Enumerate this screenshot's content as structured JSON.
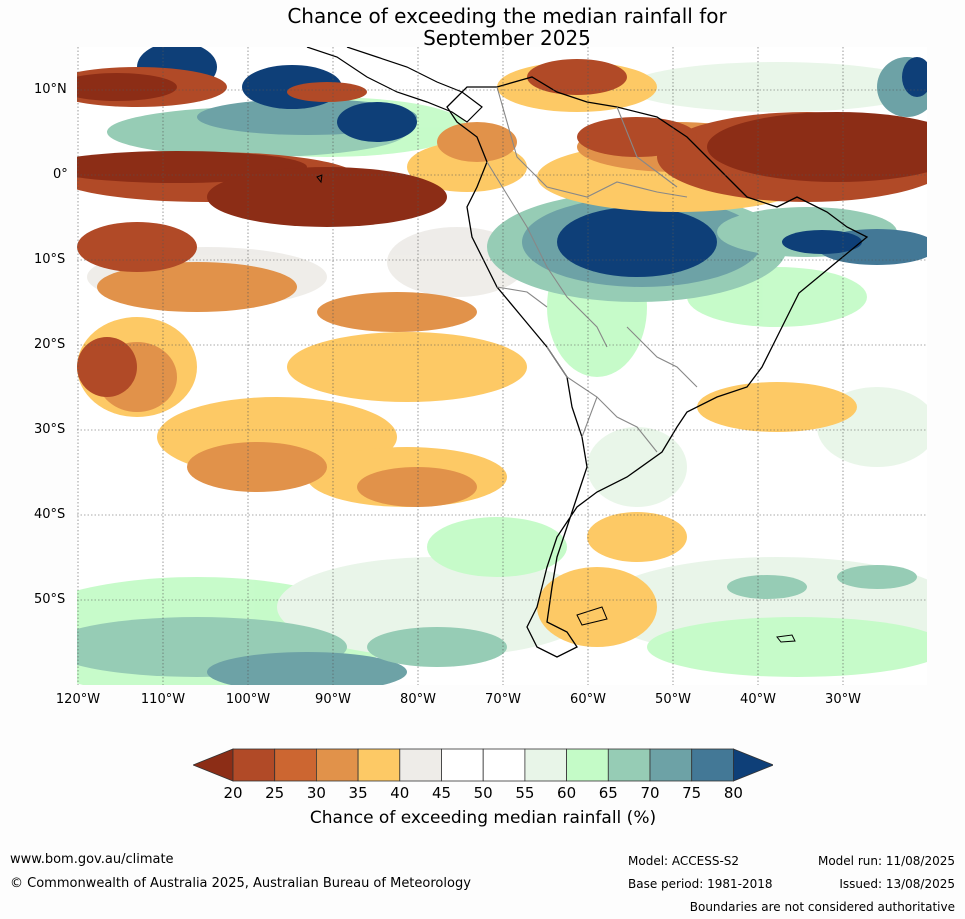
{
  "title": {
    "line1": "Chance of exceeding the median rainfall for",
    "line2": "September 2025"
  },
  "map": {
    "lat_labels": [
      "10°N",
      "0°",
      "10°S",
      "20°S",
      "30°S",
      "40°S",
      "50°S"
    ],
    "lon_labels": [
      "120°W",
      "110°W",
      "100°W",
      "90°W",
      "80°W",
      "70°W",
      "60°W",
      "50°W",
      "40°W",
      "30°W"
    ]
  },
  "colorbar": {
    "ticks": [
      "20",
      "25",
      "30",
      "35",
      "40",
      "45",
      "50",
      "55",
      "60",
      "65",
      "70",
      "75",
      "80"
    ],
    "colors": [
      "#8c2d16",
      "#b14a27",
      "#cc6631",
      "#e1924a",
      "#fdc965",
      "#eeece8",
      "#ffffff",
      "#ffffff",
      "#e8f5e8",
      "#c4fbc7",
      "#96ccb5",
      "#6da2a6",
      "#437896",
      "#0e3f78"
    ],
    "title": "Chance of exceeding median rainfall (%)"
  },
  "footer": {
    "url": "www.bom.gov.au/climate",
    "copyright": "© Commonwealth of Australia 2025, Australian Bureau of Meteorology",
    "model": "Model: ACCESS-S2",
    "base_period": "Base period: 1981-2018",
    "model_run": "Model run: 11/08/2025",
    "issued": "Issued: 13/08/2025",
    "disclaimer": "Boundaries are not considered authoritative"
  }
}
